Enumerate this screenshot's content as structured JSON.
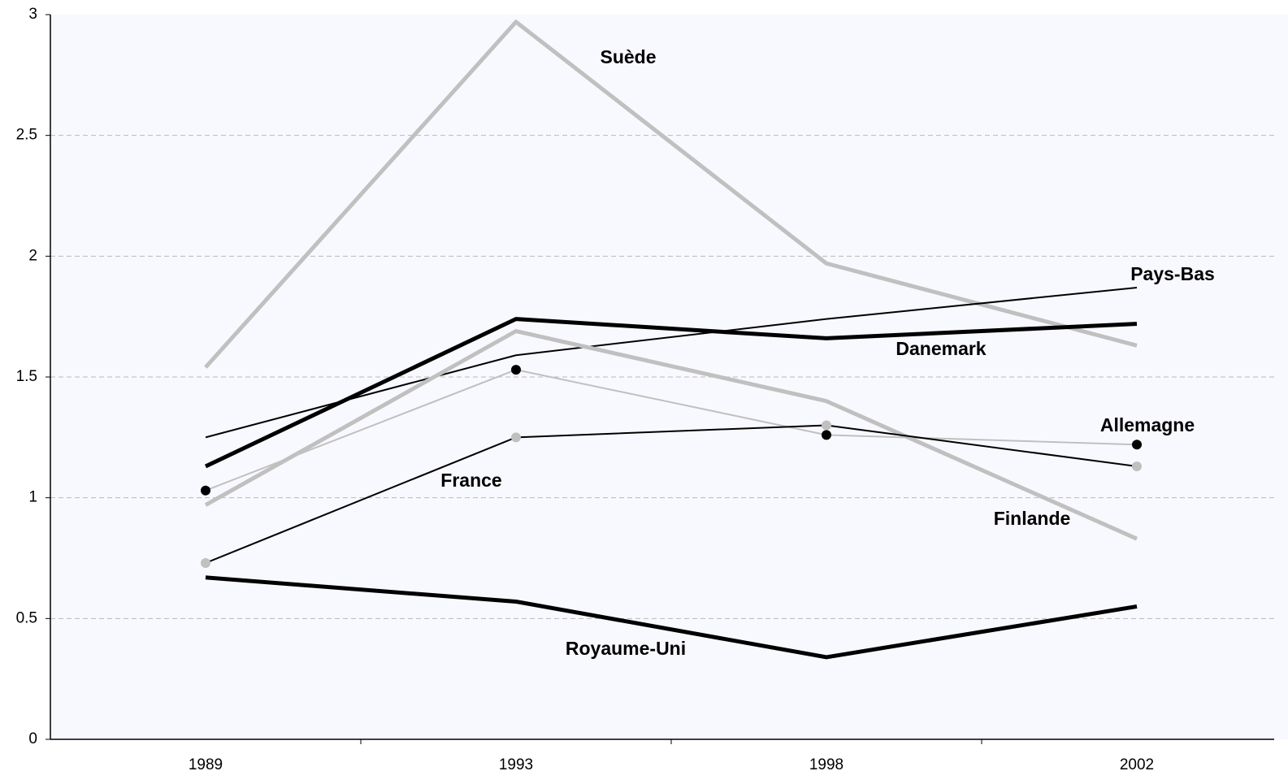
{
  "chart_data": {
    "type": "line",
    "categories": [
      "1989",
      "1993",
      "1998",
      "2002"
    ],
    "series": [
      {
        "name": "Suède",
        "color": "#c0c0c0",
        "line_width": 5,
        "values": [
          1.54,
          2.97,
          1.97,
          1.63
        ]
      },
      {
        "name": "Danemark",
        "color": "#000000",
        "line_width": 5,
        "values": [
          1.13,
          1.74,
          1.66,
          1.72
        ]
      },
      {
        "name": "Pays-Bas",
        "color": "#000000",
        "line_width": 2,
        "values": [
          1.25,
          1.59,
          1.74,
          1.87
        ]
      },
      {
        "name": "Finlande",
        "color": "#c0c0c0",
        "line_width": 5,
        "values": [
          0.97,
          1.69,
          1.4,
          0.83
        ]
      },
      {
        "name": "Allemagne",
        "color": "#c0c0c0",
        "line_width": 2,
        "marker_color": "#000000",
        "values": [
          1.03,
          1.53,
          1.26,
          1.22
        ]
      },
      {
        "name": "France",
        "color": "#000000",
        "line_width": 2,
        "marker_color": "#c0c0c0",
        "values": [
          0.73,
          1.25,
          1.3,
          1.13
        ]
      },
      {
        "name": "Royaume-Uni",
        "color": "#000000",
        "line_width": 5,
        "values": [
          0.67,
          0.57,
          0.34,
          0.55
        ]
      }
    ],
    "ylim": [
      0,
      3
    ],
    "yticks": [
      0,
      0.5,
      1,
      1.5,
      2,
      2.5,
      3
    ],
    "grid": true
  }
}
